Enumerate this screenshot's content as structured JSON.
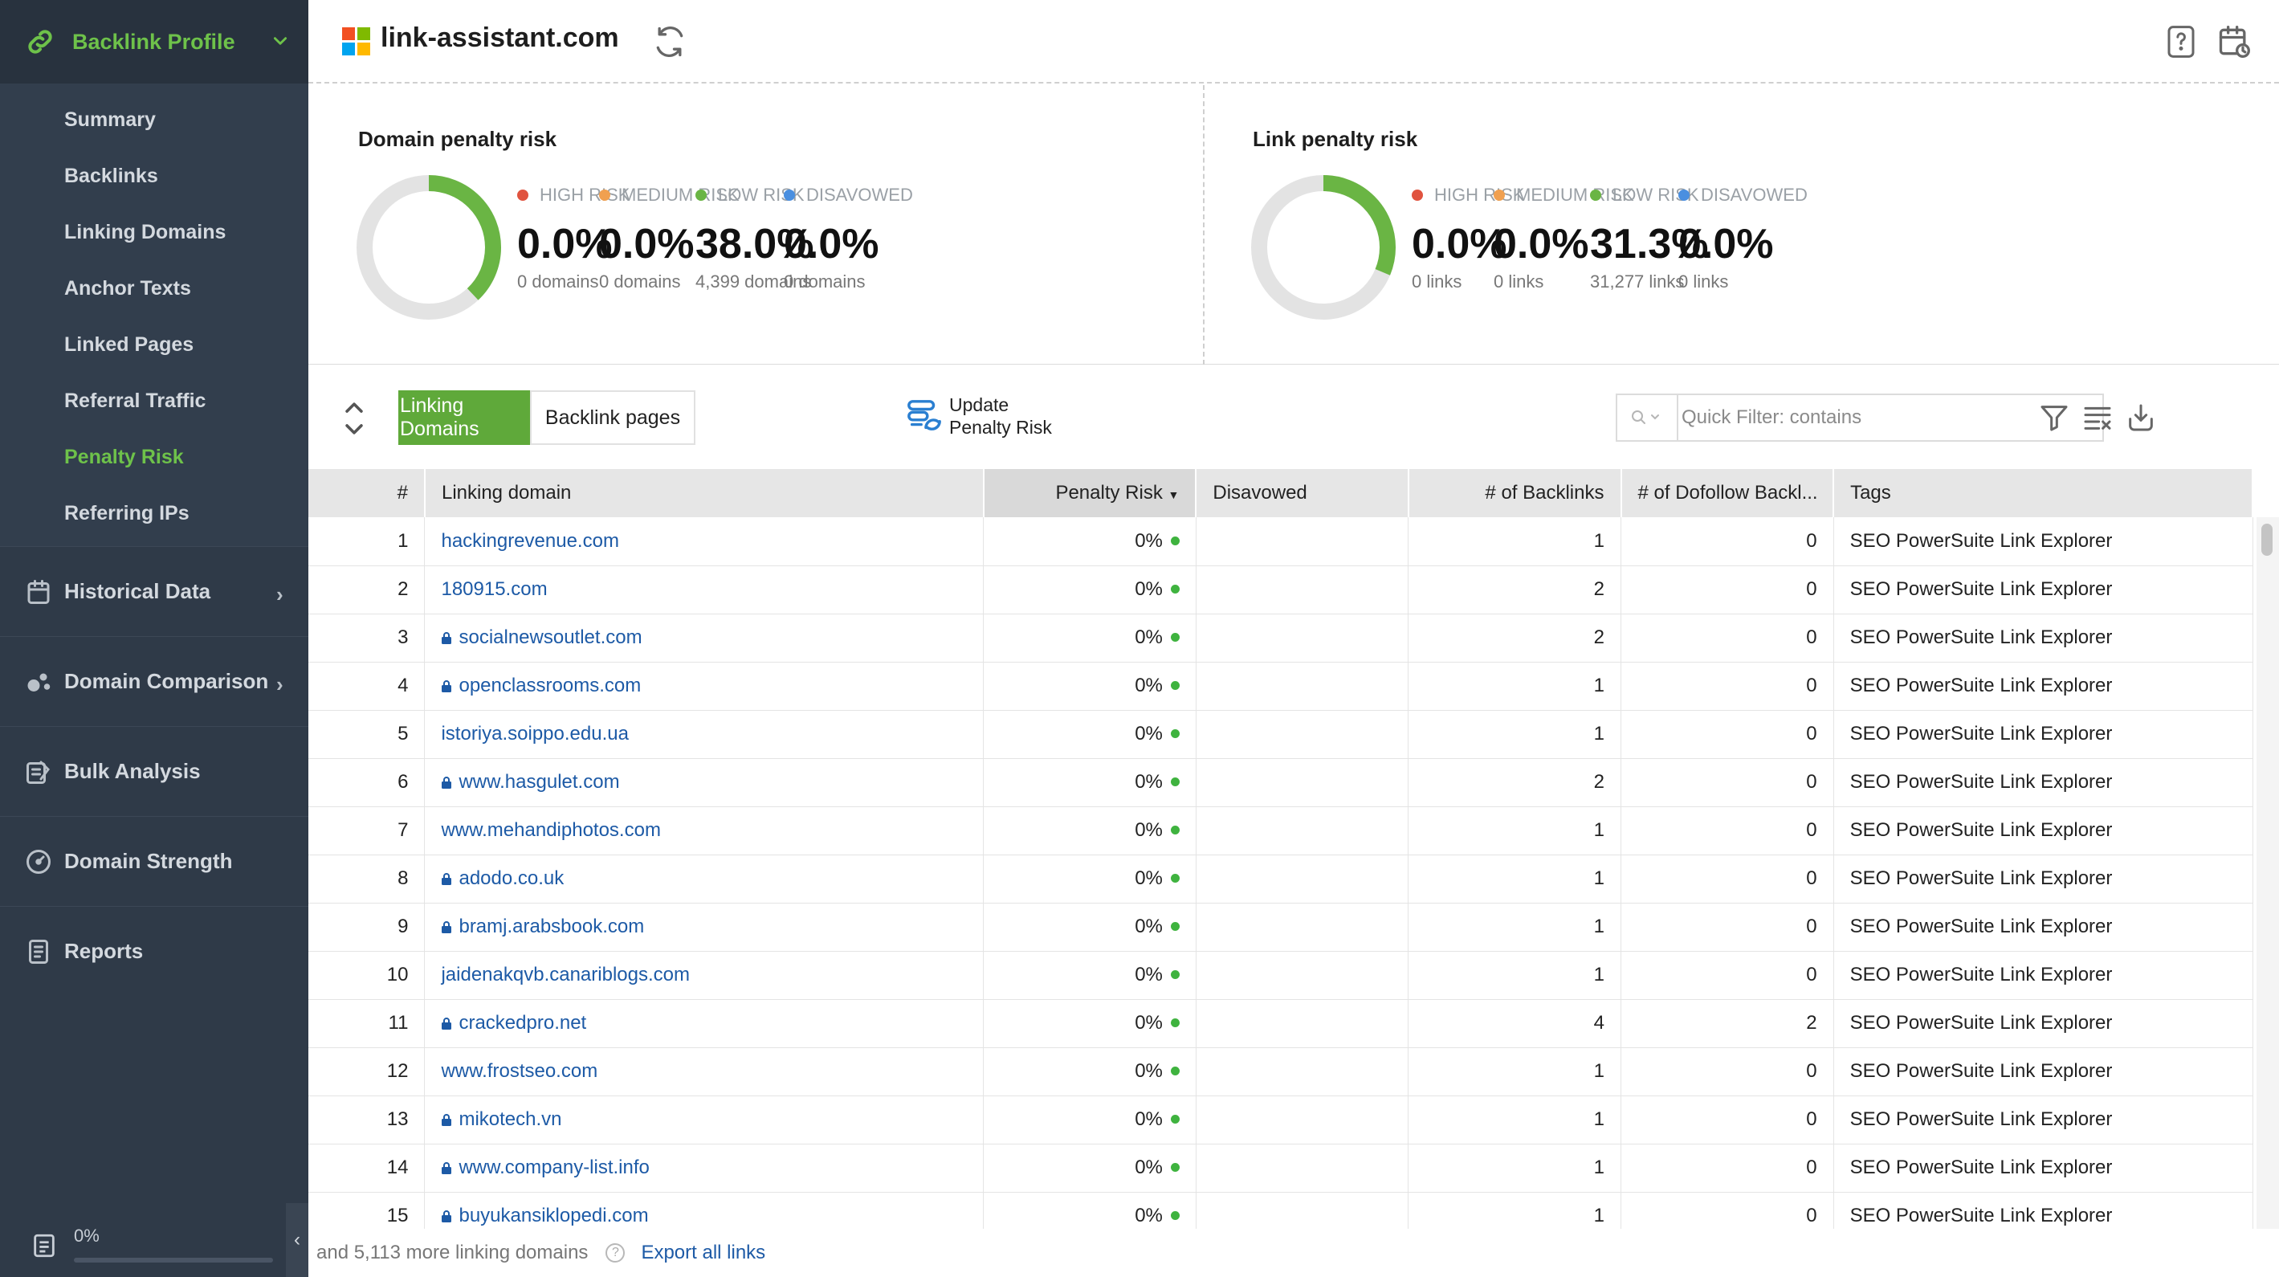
{
  "sidebar": {
    "header": {
      "label": "Backlink Profile",
      "icon": "link-icon"
    },
    "sub_items": [
      {
        "label": "Summary",
        "active": false
      },
      {
        "label": "Backlinks",
        "active": false
      },
      {
        "label": "Linking Domains",
        "active": false
      },
      {
        "label": "Anchor Texts",
        "active": false
      },
      {
        "label": "Linked Pages",
        "active": false
      },
      {
        "label": "Referral Traffic",
        "active": false
      },
      {
        "label": "Penalty Risk",
        "active": true
      },
      {
        "label": "Referring IPs",
        "active": false
      }
    ],
    "sections": [
      {
        "label": "Historical Data",
        "icon": "calendar-icon",
        "has_arrow": true
      },
      {
        "label": "Domain Comparison",
        "icon": "bubbles-icon",
        "has_arrow": true
      },
      {
        "label": "Bulk Analysis",
        "icon": "bulk-edit-icon",
        "has_arrow": false
      },
      {
        "label": "Domain Strength",
        "icon": "gauge-icon",
        "has_arrow": false
      },
      {
        "label": "Reports",
        "icon": "report-icon",
        "has_arrow": false
      }
    ],
    "progress": {
      "text": "0%",
      "value": 0
    }
  },
  "header": {
    "title": "link-assistant.com"
  },
  "domain_penalty": {
    "title": "Domain penalty risk",
    "stats": [
      {
        "label": "HIGH RISK",
        "value": "0.0%",
        "sub": "0 domains",
        "color": "#e0533f"
      },
      {
        "label": "MEDIUM RISK",
        "value": "0.0%",
        "sub": "0 domains",
        "color": "#f0a050"
      },
      {
        "label": "LOW RISK",
        "value": "38.0%",
        "sub": "4,399 domains",
        "color": "#6ab544"
      },
      {
        "label": "DISAVOWED",
        "value": "0.0%",
        "sub": "0 domains",
        "color": "#4a8fe0"
      }
    ],
    "donut_low_fraction": 0.38
  },
  "link_penalty": {
    "title": "Link penalty risk",
    "stats": [
      {
        "label": "HIGH RISK",
        "value": "0.0%",
        "sub": "0 links",
        "color": "#e0533f"
      },
      {
        "label": "MEDIUM RISK",
        "value": "0.0%",
        "sub": "0 links",
        "color": "#f0a050"
      },
      {
        "label": "LOW RISK",
        "value": "31.3%",
        "sub": "31,277 links",
        "color": "#6ab544"
      },
      {
        "label": "DISAVOWED",
        "value": "0.0%",
        "sub": "0 links",
        "color": "#4a8fe0"
      }
    ],
    "donut_low_fraction": 0.313
  },
  "toolbar": {
    "tab_active": "Linking Domains",
    "tab_inactive": "Backlink pages",
    "update_line1": "Update",
    "update_line2": "Penalty Risk",
    "filter_placeholder": "Quick Filter: contains"
  },
  "table": {
    "columns": [
      "#",
      "Linking domain",
      "Penalty Risk",
      "Disavowed",
      "# of Backlinks",
      "# of Dofollow Backl...",
      "Tags"
    ],
    "rows": [
      {
        "n": "1",
        "domain": "hackingrevenue.com",
        "lock": false,
        "risk": "0%",
        "disavowed": "",
        "backlinks": "1",
        "dofollow": "0",
        "tags": "SEO PowerSuite Link Explorer"
      },
      {
        "n": "2",
        "domain": "180915.com",
        "lock": false,
        "risk": "0%",
        "disavowed": "",
        "backlinks": "2",
        "dofollow": "0",
        "tags": "SEO PowerSuite Link Explorer"
      },
      {
        "n": "3",
        "domain": "socialnewsoutlet.com",
        "lock": true,
        "risk": "0%",
        "disavowed": "",
        "backlinks": "2",
        "dofollow": "0",
        "tags": "SEO PowerSuite Link Explorer"
      },
      {
        "n": "4",
        "domain": "openclassrooms.com",
        "lock": true,
        "risk": "0%",
        "disavowed": "",
        "backlinks": "1",
        "dofollow": "0",
        "tags": "SEO PowerSuite Link Explorer"
      },
      {
        "n": "5",
        "domain": "istoriya.soippo.edu.ua",
        "lock": false,
        "risk": "0%",
        "disavowed": "",
        "backlinks": "1",
        "dofollow": "0",
        "tags": "SEO PowerSuite Link Explorer"
      },
      {
        "n": "6",
        "domain": "www.hasgulet.com",
        "lock": true,
        "risk": "0%",
        "disavowed": "",
        "backlinks": "2",
        "dofollow": "0",
        "tags": "SEO PowerSuite Link Explorer"
      },
      {
        "n": "7",
        "domain": "www.mehandiphotos.com",
        "lock": false,
        "risk": "0%",
        "disavowed": "",
        "backlinks": "1",
        "dofollow": "0",
        "tags": "SEO PowerSuite Link Explorer"
      },
      {
        "n": "8",
        "domain": "adodo.co.uk",
        "lock": true,
        "risk": "0%",
        "disavowed": "",
        "backlinks": "1",
        "dofollow": "0",
        "tags": "SEO PowerSuite Link Explorer"
      },
      {
        "n": "9",
        "domain": "bramj.arabsbook.com",
        "lock": true,
        "risk": "0%",
        "disavowed": "",
        "backlinks": "1",
        "dofollow": "0",
        "tags": "SEO PowerSuite Link Explorer"
      },
      {
        "n": "10",
        "domain": "jaidenakqvb.canariblogs.com",
        "lock": false,
        "risk": "0%",
        "disavowed": "",
        "backlinks": "1",
        "dofollow": "0",
        "tags": "SEO PowerSuite Link Explorer"
      },
      {
        "n": "11",
        "domain": "crackedpro.net",
        "lock": true,
        "risk": "0%",
        "disavowed": "",
        "backlinks": "4",
        "dofollow": "2",
        "tags": "SEO PowerSuite Link Explorer"
      },
      {
        "n": "12",
        "domain": "www.frostseo.com",
        "lock": false,
        "risk": "0%",
        "disavowed": "",
        "backlinks": "1",
        "dofollow": "0",
        "tags": "SEO PowerSuite Link Explorer"
      },
      {
        "n": "13",
        "domain": "mikotech.vn",
        "lock": true,
        "risk": "0%",
        "disavowed": "",
        "backlinks": "1",
        "dofollow": "0",
        "tags": "SEO PowerSuite Link Explorer"
      },
      {
        "n": "14",
        "domain": "www.company-list.info",
        "lock": true,
        "risk": "0%",
        "disavowed": "",
        "backlinks": "1",
        "dofollow": "0",
        "tags": "SEO PowerSuite Link Explorer"
      },
      {
        "n": "15",
        "domain": "buyukansiklopedi.com",
        "lock": true,
        "risk": "0%",
        "disavowed": "",
        "backlinks": "1",
        "dofollow": "0",
        "tags": "SEO PowerSuite Link Explorer"
      }
    ]
  },
  "footer": {
    "more_text": "and 5,113 more linking domains",
    "export_label": "Export all links"
  }
}
